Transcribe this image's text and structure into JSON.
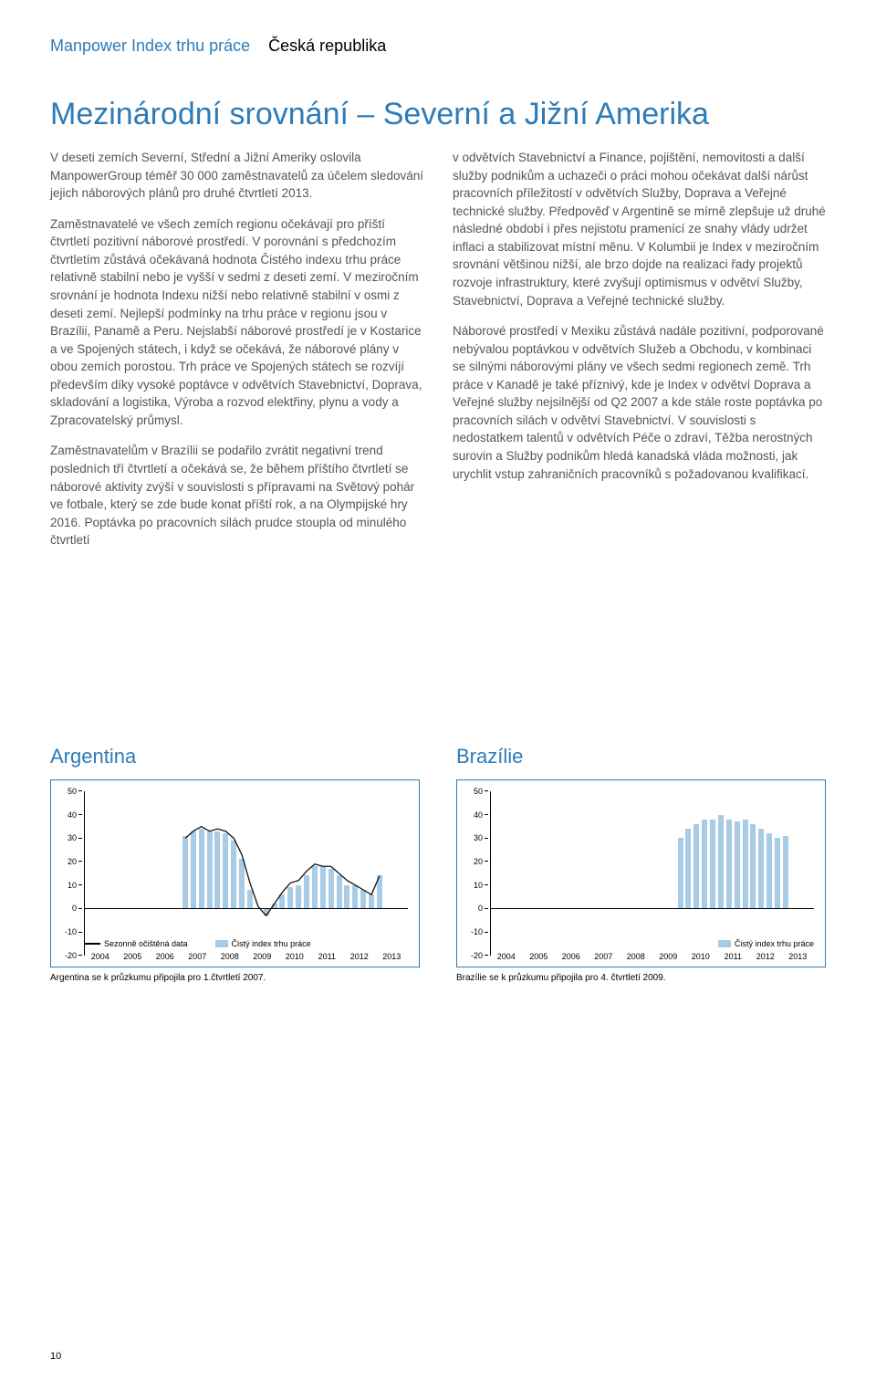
{
  "header": {
    "accent": "Manpower Index trhu práce",
    "dark": "Česká republika"
  },
  "title": "Mezinárodní srovnání – Severní a Jižní Amerika",
  "body": {
    "left": [
      "V deseti zemích Severní, Střední a Jižní Ameriky oslovila ManpowerGroup téměř 30 000 zaměstnavatelů za účelem sledování jejich náborových plánů pro druhé čtvrtletí 2013.",
      "Zaměstnavatelé ve všech zemích regionu očekávají pro příští čtvrtletí pozitivní náborové prostředí. V porovnání s předchozím čtvrtletím zůstává očekávaná hodnota Čistého indexu trhu práce relativně stabilní nebo je vyšší v sedmi z deseti zemí. V meziročním srovnání je hodnota Indexu nižší nebo relativně stabilní v osmi z deseti zemí. Nejlepší podmínky na trhu práce v regionu jsou v Brazílii, Panamě a Peru. Nejslabší náborové prostředí je v Kostarice a ve Spojených státech, i když se očekává, že náborové plány v obou zemích porostou. Trh práce ve Spojených státech se rozvíjí především díky vysoké poptávce v odvětvích Stavebnictví, Doprava, skladování a logistika, Výroba a rozvod elektřiny, plynu a vody a Zpracovatelský průmysl.",
      "Zaměstnavatelům v Brazílii se podařilo zvrátit negativní trend posledních tří čtvrtletí a očekává se, že během příštího čtvrtletí se náborové aktivity zvýší v souvislosti s přípravami na Světový pohár ve fotbale, který se zde bude konat příští rok, a na Olympijské hry 2016. Poptávka po pracovních silách prudce stoupla od minulého čtvrtletí"
    ],
    "right": [
      "v odvětvích Stavebnictví a Finance, pojištění, nemovitosti a další služby podnikům a uchazeči o práci mohou očekávat další nárůst pracovních příležitostí v odvětvích Služby, Doprava a Veřejné technické služby. Předpověď v Argentině se mírně zlepšuje už druhé následné období i přes nejistotu pramenící ze snahy vlády udržet inflaci a stabilizovat místní měnu. V Kolumbii je Index v meziročním srovnání většinou nižší, ale brzo dojde na realizaci řady projektů rozvoje infrastruktury, které zvyšují optimismus v odvětví Služby, Stavebnictví, Doprava a Veřejné technické služby.",
      "Náborové prostředí v Mexiku zůstává nadále pozitivní, podporované nebývalou poptávkou v odvětvích Služeb a Obchodu, v kombinaci se silnými náborovými plány ve všech sedmi regionech země. Trh práce v Kanadě je také příznivý, kde je Index v odvětví Doprava a Veřejné služby nejsilnější od Q2 2007 a kde stále roste poptávka po pracovních silách v odvětví Stavebnictví. V souvislosti s nedostatkem talentů v odvětvích Péče o zdraví, Těžba nerostných surovin a Služby podnikům hledá kanadská vláda možnosti, jak urychlit vstup zahraničních pracovníků s požadovanou kvalifikací."
    ]
  },
  "charts": {
    "y": {
      "min": -20,
      "max": 50,
      "step": 10
    },
    "xlabels": [
      "2004",
      "2005",
      "2006",
      "2007",
      "2008",
      "2009",
      "2010",
      "2011",
      "2012",
      "2013"
    ],
    "argentina": {
      "title": "Argentina",
      "note": "Argentina se k průzkumu připojila pro 1.čtvrtletí 2007.",
      "legend": {
        "seasonal": "Sezonně očištěná data",
        "index": "Čistý index trhu práce"
      },
      "bar_color": "#a8cce6",
      "line_color": "#111",
      "bars_startQ": 12,
      "bars": [
        31,
        33,
        34,
        33,
        33,
        32,
        29,
        21,
        8,
        0,
        -3,
        2,
        6,
        9,
        10,
        14,
        18,
        18,
        17,
        14,
        10,
        10,
        8,
        6,
        14
      ],
      "line": [
        30,
        33,
        35,
        33,
        34,
        33,
        30,
        23,
        11,
        1,
        -3,
        2,
        7,
        11,
        12,
        16,
        19,
        18,
        18,
        15,
        12,
        10,
        8,
        6,
        14
      ]
    },
    "brazil": {
      "title": "Brazílie",
      "note": "Brazílie se k průzkumu připojila pro 4. čtvrtletí 2009.",
      "legend": {
        "index": "Čistý index trhu práce"
      },
      "bar_color": "#a8cce6",
      "bars_startQ": 23,
      "bars": [
        30,
        34,
        36,
        38,
        38,
        40,
        38,
        37,
        38,
        36,
        34,
        32,
        30,
        31
      ]
    }
  },
  "page_number": "10"
}
